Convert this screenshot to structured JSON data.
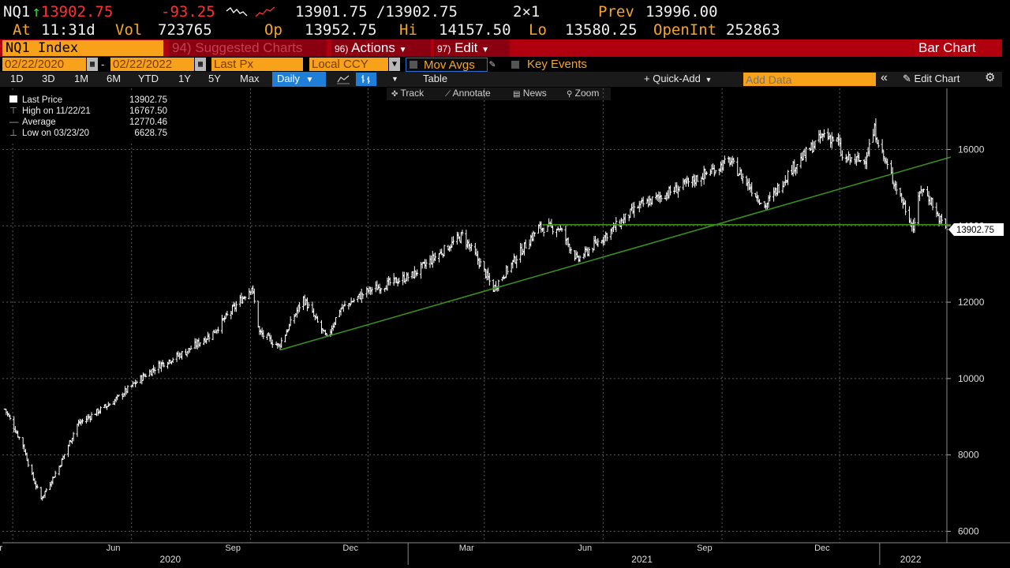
{
  "quote": {
    "ticker": "NQ1",
    "arrow": "↑",
    "last": "13902.75",
    "change": "-93.25",
    "bid_ask": "13901.75 /13902.75",
    "size": "2×1",
    "prev_label": "Prev",
    "prev": "13996.00",
    "at_label": "At",
    "time": "11:31d",
    "vol_label": "Vol",
    "vol": "723765",
    "op_label": "Op",
    "op": "13952.75",
    "hi_label": "Hi",
    "hi": "14157.50",
    "lo_label": "Lo",
    "lo": "13580.25",
    "oi_label": "OpenInt",
    "oi": "252863"
  },
  "command_bar": {
    "security": "NQ1 Index",
    "suggested": "94) Suggested Charts",
    "actions_num": "96)",
    "actions": "Actions",
    "edit_num": "97)",
    "edit": "Edit",
    "chart_type": "Bar Chart"
  },
  "controls": {
    "start_date": "02/22/2020",
    "dash": "-",
    "end_date": "02/22/2022",
    "field": "Last Px",
    "currency": "Local CCY",
    "mov_avgs": "Mov Avgs",
    "key_events": "Key Events"
  },
  "toolbar": {
    "periods": [
      "1D",
      "3D",
      "1M",
      "6M",
      "YTD",
      "1Y",
      "5Y",
      "Max"
    ],
    "frequency": "Daily",
    "table": "Table",
    "quick_add": "+ Quick-Add",
    "add_data_placeholder": "Add Data",
    "edit_chart": "Edit Chart"
  },
  "tools": {
    "track": "Track",
    "annotate": "Annotate",
    "news": "News",
    "zoom": "Zoom"
  },
  "legend": [
    {
      "label": "Last Price",
      "value": "13902.75"
    },
    {
      "label": "High on 11/22/21",
      "value": "16767.50"
    },
    {
      "label": "Average",
      "value": "12770.46"
    },
    {
      "label": "Low on 03/23/20",
      "value": "6628.75"
    }
  ],
  "colors": {
    "background": "#000000",
    "bars": "#ffffff",
    "trendline": "#3a8f1a",
    "accent_red": "#b00010",
    "amber": "#f5a623"
  },
  "chart_data": {
    "type": "bar",
    "ylim": [
      5700,
      17600
    ],
    "y_ticks": [
      6000,
      8000,
      10000,
      12000,
      14000,
      16000
    ],
    "y_tick_labels": [
      "6000",
      "8000",
      "10000",
      "12000",
      "14000",
      "16000"
    ],
    "x_range": [
      "2020-02-22",
      "2022-02-22"
    ],
    "x_month_ticks": [
      {
        "date": "2020-03-01",
        "label": "Mar"
      },
      {
        "date": "2020-06-01",
        "label": "Jun"
      },
      {
        "date": "2020-09-01",
        "label": "Sep"
      },
      {
        "date": "2020-12-01",
        "label": "Dec"
      },
      {
        "date": "2021-03-01",
        "label": "Mar"
      },
      {
        "date": "2021-06-01",
        "label": "Jun"
      },
      {
        "date": "2021-09-01",
        "label": "Sep"
      },
      {
        "date": "2021-12-01",
        "label": "Dec"
      }
    ],
    "x_year_labels": [
      {
        "date": "2020-07-01",
        "label": "2020"
      },
      {
        "date": "2021-07-01",
        "label": "2021"
      },
      {
        "date": "2022-01-25",
        "label": "2022"
      }
    ],
    "last_price_label": "13902.75",
    "anchors": [
      {
        "date": "2020-02-24",
        "close": 9200
      },
      {
        "date": "2020-03-09",
        "close": 8250
      },
      {
        "date": "2020-03-16",
        "close": 7450
      },
      {
        "date": "2020-03-23",
        "close": 6850
      },
      {
        "date": "2020-04-06",
        "close": 7700
      },
      {
        "date": "2020-04-20",
        "close": 8800
      },
      {
        "date": "2020-05-18",
        "close": 9400
      },
      {
        "date": "2020-06-08",
        "close": 10000
      },
      {
        "date": "2020-06-22",
        "close": 10350
      },
      {
        "date": "2020-07-13",
        "close": 10700
      },
      {
        "date": "2020-08-03",
        "close": 11200
      },
      {
        "date": "2020-09-02",
        "close": 12400
      },
      {
        "date": "2020-09-08",
        "close": 11200
      },
      {
        "date": "2020-09-23",
        "close": 10850
      },
      {
        "date": "2020-10-12",
        "close": 12100
      },
      {
        "date": "2020-10-30",
        "close": 11050
      },
      {
        "date": "2020-11-09",
        "close": 11800
      },
      {
        "date": "2020-12-01",
        "close": 12300
      },
      {
        "date": "2021-01-04",
        "close": 12700
      },
      {
        "date": "2021-02-12",
        "close": 13750
      },
      {
        "date": "2021-02-26",
        "close": 13000
      },
      {
        "date": "2021-03-08",
        "close": 12350
      },
      {
        "date": "2021-03-22",
        "close": 13000
      },
      {
        "date": "2021-04-12",
        "close": 13950
      },
      {
        "date": "2021-04-28",
        "close": 13950
      },
      {
        "date": "2021-05-12",
        "close": 13100
      },
      {
        "date": "2021-06-01",
        "close": 13700
      },
      {
        "date": "2021-06-28",
        "close": 14500
      },
      {
        "date": "2021-07-30",
        "close": 15000
      },
      {
        "date": "2021-09-07",
        "close": 15700
      },
      {
        "date": "2021-09-30",
        "close": 14700
      },
      {
        "date": "2021-10-04",
        "close": 14500
      },
      {
        "date": "2021-10-25",
        "close": 15500
      },
      {
        "date": "2021-11-19",
        "close": 16400
      },
      {
        "date": "2021-11-30",
        "close": 16200
      },
      {
        "date": "2021-12-03",
        "close": 15750
      },
      {
        "date": "2021-12-20",
        "close": 15700
      },
      {
        "date": "2021-12-28",
        "close": 16500
      },
      {
        "date": "2022-01-05",
        "close": 15700
      },
      {
        "date": "2022-01-18",
        "close": 14700
      },
      {
        "date": "2022-01-27",
        "close": 13950
      },
      {
        "date": "2022-02-02",
        "close": 15000
      },
      {
        "date": "2022-02-10",
        "close": 14650
      },
      {
        "date": "2022-02-14",
        "close": 14300
      },
      {
        "date": "2022-02-22",
        "close": 13902.75
      }
    ],
    "lines": [
      {
        "name": "trendline",
        "start": {
          "date": "2020-09-24",
          "y": 10750
        },
        "end": {
          "date": "2022-02-25",
          "y": 15800
        }
      },
      {
        "name": "support",
        "start": {
          "date": "2021-04-15",
          "y": 14030
        },
        "end": {
          "date": "2022-02-25",
          "y": 14030
        }
      }
    ]
  }
}
